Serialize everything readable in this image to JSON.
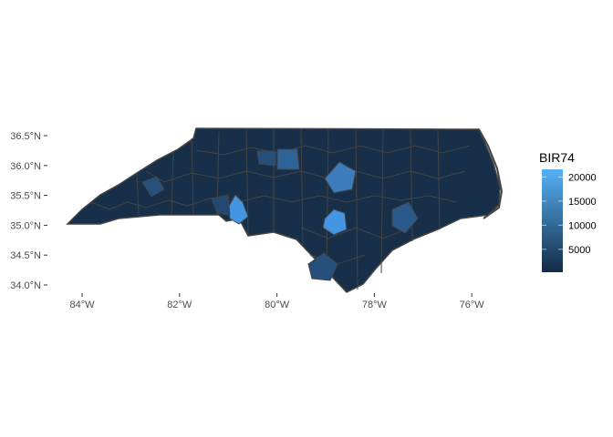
{
  "chart_data": {
    "type": "choropleth",
    "fill_variable": "BIR74",
    "x_ticks": [
      "84°W",
      "82°W",
      "80°W",
      "78°W",
      "76°W"
    ],
    "x_tick_values": [
      -84,
      -82,
      -80,
      -78,
      -76
    ],
    "y_ticks": [
      "34.0°N",
      "34.5°N",
      "35.0°N",
      "35.5°N",
      "36.0°N",
      "36.5°N"
    ],
    "y_tick_values": [
      34.0,
      34.5,
      35.0,
      35.5,
      36.0,
      36.5
    ],
    "legend": {
      "title": "BIR74",
      "ticks": [
        "5000",
        "10000",
        "15000",
        "20000"
      ],
      "tick_values": [
        5000,
        10000,
        15000,
        20000
      ],
      "range": [
        248,
        21588
      ],
      "low_color": "#132B43",
      "high_color": "#56B1F7",
      "position": "right"
    },
    "border_color": "#444444",
    "grid": false
  }
}
